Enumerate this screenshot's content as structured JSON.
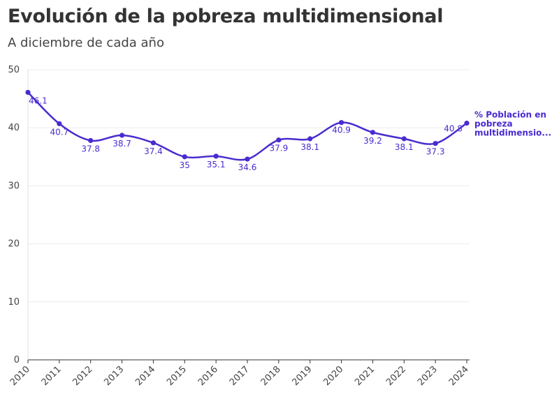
{
  "chart_data": {
    "type": "line",
    "title": "Evolución de la pobreza multidimensional",
    "subtitle": "A diciembre de cada año",
    "x": [
      "2010",
      "2011",
      "2012",
      "2013",
      "2014",
      "2015",
      "2016",
      "2017",
      "2018",
      "2019",
      "2020",
      "2021",
      "2022",
      "2023",
      "2024"
    ],
    "series": [
      {
        "name": "% Población en pobreza multidimensional",
        "name_lines": [
          "% Población en",
          "pobreza",
          "multidimensio..."
        ],
        "values": [
          46.1,
          40.7,
          37.8,
          38.7,
          37.4,
          35,
          35.1,
          34.6,
          37.9,
          38.1,
          40.9,
          39.2,
          38.1,
          37.3,
          40.8
        ],
        "labels": [
          "46.1",
          "40.7",
          "37.8",
          "38.7",
          "37.4",
          "35",
          "35.1",
          "34.6",
          "37.9",
          "38.1",
          "40.9",
          "39.2",
          "38.1",
          "37.3",
          "40.8"
        ],
        "color": "#4a2bd0"
      }
    ],
    "ylim": [
      0,
      50
    ],
    "yticks": [
      "0",
      "10",
      "20",
      "30",
      "40",
      "50"
    ],
    "grid": true,
    "xlabel": "",
    "ylabel": ""
  }
}
